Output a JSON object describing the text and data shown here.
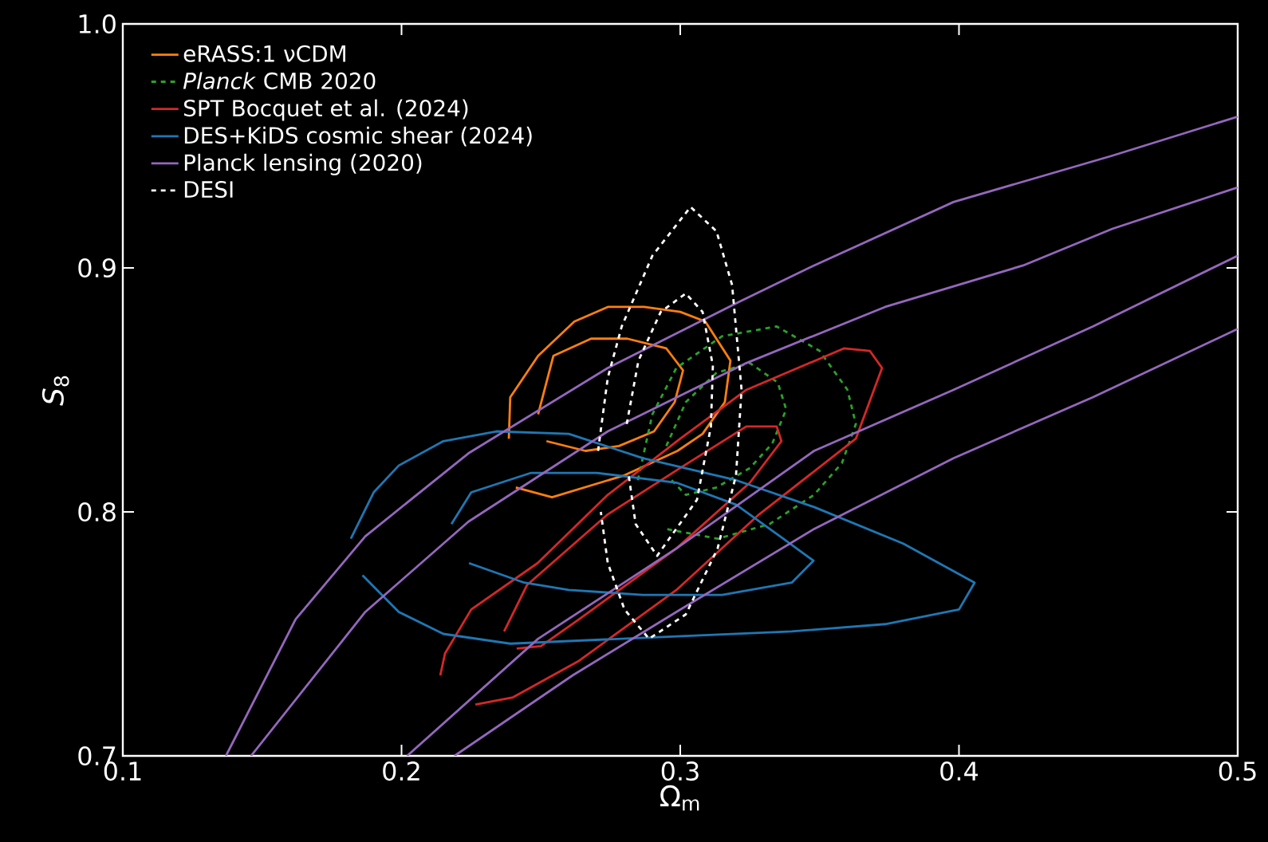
{
  "chart_data": {
    "type": "line",
    "xlabel": "Ω$_{m}$",
    "ylabel": "*S*$_{8}$",
    "xlim": [
      0.1,
      0.5
    ],
    "ylim": [
      0.7,
      1.0
    ],
    "xticks": [
      0.1,
      0.2,
      0.3,
      0.4,
      0.5
    ],
    "yticks": [
      0.7,
      0.8,
      0.9,
      {
        "value": 1.0,
        "label": "1.0"
      }
    ],
    "legend": "top left",
    "marker": "none",
    "series": [
      {
        "name": "eRASS:1 νCDM",
        "color": "#ff7f0e",
        "line_style": "solid",
        "x": [
          0.2385,
          0.239,
          0.249,
          0.262,
          0.274,
          0.287,
          0.3,
          0.309,
          0.318,
          0.316,
          0.308,
          0.299,
          0.28,
          0.254,
          0.241
        ],
        "values": [
          0.83,
          0.847,
          0.864,
          0.878,
          0.884,
          0.884,
          0.882,
          0.878,
          0.862,
          0.845,
          0.832,
          0.825,
          0.815,
          0.806,
          0.81
        ]
      },
      {
        "color": "#ff7f0e",
        "line_style": "solid",
        "x": [
          0.249,
          0.2545,
          0.268,
          0.281,
          0.295,
          0.301,
          0.298,
          0.2906,
          0.278,
          0.266,
          0.252
        ],
        "values": [
          0.84,
          0.864,
          0.871,
          0.871,
          0.867,
          0.858,
          0.845,
          0.833,
          0.827,
          0.825,
          0.829
        ]
      },
      {
        "name": "*Planck* CMB 2020",
        "color": "#2ca02c",
        "line_style": "dashed",
        "x": [
          0.2848,
          0.29,
          0.2986,
          0.315,
          0.3346,
          0.35,
          0.36,
          0.363,
          0.358,
          0.348,
          0.332,
          0.3134,
          0.295
        ],
        "values": [
          0.813,
          0.84,
          0.859,
          0.872,
          0.876,
          0.866,
          0.85,
          0.836,
          0.82,
          0.807,
          0.795,
          0.789,
          0.793
        ]
      },
      {
        "color": "#2ca02c",
        "line_style": "dashed",
        "x": [
          0.295,
          0.302,
          0.313,
          0.325,
          0.335,
          0.338,
          0.333,
          0.325,
          0.313,
          0.302,
          0.296
        ],
        "values": [
          0.827,
          0.845,
          0.857,
          0.861,
          0.853,
          0.842,
          0.828,
          0.818,
          0.81,
          0.807,
          0.814
        ]
      },
      {
        "name": "SPT Bocquet et al. (2024)",
        "color": "#d62728",
        "line_style": "solid",
        "x": [
          0.2139,
          0.2156,
          0.225,
          0.2488,
          0.274,
          0.3,
          0.3237,
          0.3587,
          0.368,
          0.3724,
          0.363,
          0.3283,
          0.2986,
          0.2637,
          0.24,
          0.2265
        ],
        "values": [
          0.733,
          0.742,
          0.76,
          0.779,
          0.807,
          0.83,
          0.85,
          0.867,
          0.866,
          0.859,
          0.83,
          0.799,
          0.768,
          0.739,
          0.724,
          0.721
        ]
      },
      {
        "color": "#d62728",
        "line_style": "solid",
        "x": [
          0.2368,
          0.245,
          0.274,
          0.3,
          0.3237,
          0.3346,
          0.3363,
          0.325,
          0.2986,
          0.2637,
          0.25,
          0.2413
        ],
        "values": [
          0.751,
          0.77,
          0.799,
          0.818,
          0.835,
          0.835,
          0.829,
          0.812,
          0.785,
          0.756,
          0.745,
          0.744
        ]
      },
      {
        "name": "DES+KiDS cosmic shear (2024)",
        "color": "#1f77b4",
        "line_style": "solid",
        "x": [
          0.1818,
          0.19,
          0.199,
          0.215,
          0.234,
          0.26,
          0.2866,
          0.32,
          0.348,
          0.38,
          0.4056,
          0.4,
          0.3735,
          0.34,
          0.2986,
          0.239,
          0.215,
          0.199,
          0.186
        ],
        "values": [
          0.789,
          0.808,
          0.819,
          0.829,
          0.833,
          0.832,
          0.822,
          0.813,
          0.802,
          0.787,
          0.771,
          0.76,
          0.754,
          0.751,
          0.749,
          0.746,
          0.75,
          0.759,
          0.774
        ]
      },
      {
        "color": "#1f77b4",
        "line_style": "solid",
        "x": [
          0.2179,
          0.225,
          0.2465,
          0.27,
          0.2986,
          0.32,
          0.3358,
          0.3478,
          0.34,
          0.315,
          0.2866,
          0.26,
          0.244,
          0.2242
        ],
        "values": [
          0.795,
          0.808,
          0.816,
          0.816,
          0.812,
          0.803,
          0.79,
          0.78,
          0.771,
          0.766,
          0.766,
          0.768,
          0.771,
          0.779
        ]
      },
      {
        "name": "Planck lensing (2020)",
        "color": "#9467bd",
        "line_style": "solid",
        "x": [
          0.137,
          0.162,
          0.187,
          0.224,
          0.274,
          0.321,
          0.348,
          0.398,
          0.455,
          0.5
        ],
        "values": [
          0.7,
          0.756,
          0.79,
          0.824,
          0.859,
          0.886,
          0.901,
          0.927,
          0.946,
          0.962
        ]
      },
      {
        "color": "#9467bd",
        "line_style": "solid",
        "x": [
          0.146,
          0.187,
          0.224,
          0.274,
          0.3237,
          0.3735,
          0.423,
          0.455,
          0.5
        ],
        "values": [
          0.7,
          0.759,
          0.796,
          0.833,
          0.861,
          0.884,
          0.901,
          0.916,
          0.933
        ]
      },
      {
        "color": "#9467bd",
        "line_style": "solid",
        "x": [
          0.202,
          0.249,
          0.2986,
          0.348,
          0.398,
          0.448,
          0.5
        ],
        "values": [
          0.7,
          0.748,
          0.785,
          0.825,
          0.85,
          0.876,
          0.905
        ]
      },
      {
        "color": "#9467bd",
        "line_style": "solid",
        "x": [
          0.219,
          0.2614,
          0.2986,
          0.348,
          0.398,
          0.448,
          0.5
        ],
        "values": [
          0.7,
          0.733,
          0.759,
          0.793,
          0.822,
          0.847,
          0.875
        ]
      },
      {
        "name": "DESI",
        "color": "#ffffff",
        "line_style": "dashed",
        "x": [
          0.2705,
          0.274,
          0.279,
          0.29,
          0.3037,
          0.313,
          0.3186,
          0.322,
          0.32,
          0.3134,
          0.302,
          0.2888,
          0.28,
          0.274,
          0.2715
        ],
        "values": [
          0.825,
          0.855,
          0.876,
          0.905,
          0.925,
          0.915,
          0.893,
          0.85,
          0.815,
          0.785,
          0.758,
          0.748,
          0.76,
          0.779,
          0.8
        ]
      },
      {
        "color": "#ffffff",
        "line_style": "dashed",
        "x": [
          0.2808,
          0.285,
          0.293,
          0.302,
          0.308,
          0.3117,
          0.311,
          0.306,
          0.2917,
          0.284,
          0.2815
        ],
        "values": [
          0.836,
          0.862,
          0.882,
          0.8895,
          0.882,
          0.86,
          0.835,
          0.805,
          0.782,
          0.795,
          0.815
        ]
      }
    ]
  }
}
